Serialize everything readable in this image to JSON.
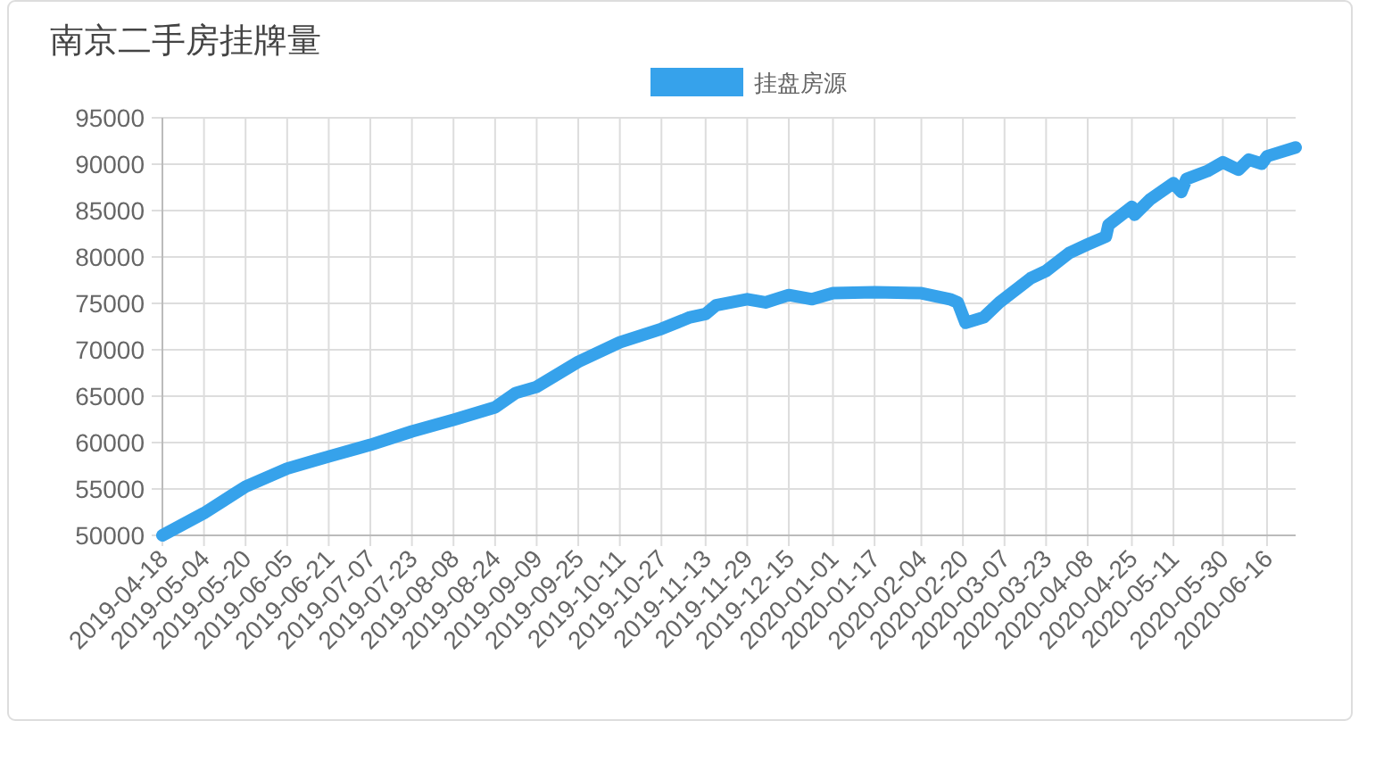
{
  "chart_data": {
    "type": "line",
    "title": "南京二手房挂牌量",
    "legend": "top",
    "grid": true,
    "x": [
      "2019-04-18",
      "2019-05-04",
      "2019-05-20",
      "2019-06-05",
      "2019-06-21",
      "2019-07-07",
      "2019-07-23",
      "2019-08-08",
      "2019-08-24",
      "2019-09-01",
      "2019-09-09",
      "2019-09-25",
      "2019-10-11",
      "2019-10-27",
      "2019-11-07",
      "2019-11-13",
      "2019-11-17",
      "2019-11-29",
      "2019-12-06",
      "2019-12-15",
      "2019-12-24",
      "2020-01-01",
      "2020-01-17",
      "2020-02-04",
      "2020-02-15",
      "2020-02-18",
      "2020-02-21",
      "2020-02-28",
      "2020-03-05",
      "2020-03-17",
      "2020-03-23",
      "2020-04-01",
      "2020-04-08",
      "2020-04-15",
      "2020-04-16",
      "2020-04-25",
      "2020-04-26",
      "2020-05-02",
      "2020-05-11",
      "2020-05-14",
      "2020-05-16",
      "2020-05-24",
      "2020-05-30",
      "2020-06-05",
      "2020-06-09",
      "2020-06-14",
      "2020-06-16",
      "2020-06-27"
    ],
    "series": [
      {
        "name": "挂盘房源",
        "color": "#36a2eb",
        "values": [
          50000,
          52400,
          55250,
          57200,
          58500,
          59750,
          61200,
          62450,
          63800,
          65350,
          66000,
          68700,
          70800,
          72250,
          73500,
          73850,
          74800,
          75450,
          75100,
          75900,
          75450,
          76100,
          76200,
          76100,
          75450,
          75100,
          72900,
          73500,
          75100,
          77700,
          78500,
          80450,
          81350,
          82200,
          83450,
          85400,
          84550,
          86200,
          87950,
          87000,
          88400,
          89250,
          90200,
          89400,
          90500,
          90050,
          90850,
          91800
        ]
      }
    ],
    "xlim": [
      "2019-04-18",
      "2020-06-27"
    ],
    "xticks": [
      "2019-04-18",
      "2019-05-04",
      "2019-05-20",
      "2019-06-05",
      "2019-06-21",
      "2019-07-07",
      "2019-07-23",
      "2019-08-08",
      "2019-08-24",
      "2019-09-09",
      "2019-09-25",
      "2019-10-11",
      "2019-10-27",
      "2019-11-13",
      "2019-11-29",
      "2019-12-15",
      "2020-01-01",
      "2020-01-17",
      "2020-02-04",
      "2020-02-20",
      "2020-03-07",
      "2020-03-23",
      "2020-04-08",
      "2020-04-25",
      "2020-05-11",
      "2020-05-30",
      "2020-06-16"
    ],
    "ylim": [
      50000,
      95000
    ],
    "yticks": [
      50000,
      55000,
      60000,
      65000,
      70000,
      75000,
      80000,
      85000,
      90000,
      95000
    ]
  }
}
